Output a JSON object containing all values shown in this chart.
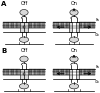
{
  "bg_color": "#ffffff",
  "line_color": "#000000",
  "gray_fill": "#d8d8d8",
  "gray_dark": "#909090",
  "gray_mem": "#b8b8b8",
  "panels": {
    "top_left_title": "Off",
    "top_right_title": "On",
    "bottom_left_title": "Off",
    "bottom_right_title": "On"
  },
  "label_A": "A",
  "label_B": "B",
  "arrow_labels": {
    "tr_top": "Fₐ",
    "tr_right_top": "Fₐ",
    "tr_right_bot": "Cₑ",
    "tr_bot": "Cₑ",
    "br_top": "F",
    "br_bot": "T"
  }
}
